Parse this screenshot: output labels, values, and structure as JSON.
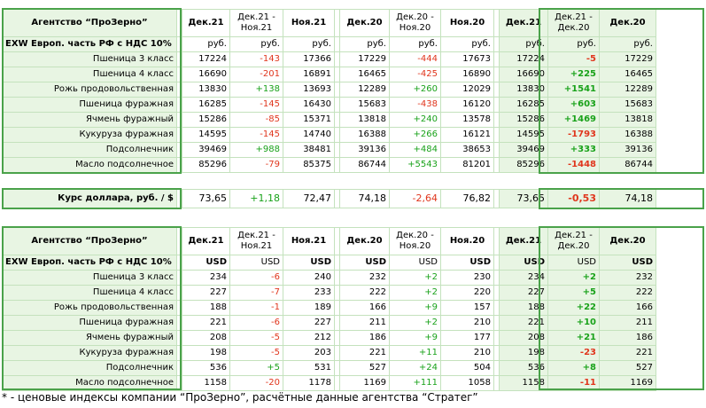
{
  "header1": {
    "agency": "Агентство “ПроЗерно”",
    "basis": "EXW Европ. часть РФ с НДС 10%",
    "cols": [
      "Дек.21",
      "Дек.21 -\nНоя.21",
      "Ноя.21",
      "Дек.20",
      "Дек.20 -\nНоя.20",
      "Ноя.20",
      "Дек.21",
      "Дек.21 -\nДек.20",
      "Дек.20"
    ],
    "units": [
      "руб.",
      "руб.",
      "руб.",
      "руб.",
      "руб.",
      "руб.",
      "руб.",
      "руб.",
      "руб."
    ]
  },
  "rub_rows": [
    {
      "name": "Пшеница 3 класс",
      "v": [
        "17224",
        "-143",
        "17366",
        "17229",
        "-444",
        "17673",
        "17224",
        "-5",
        "17229"
      ]
    },
    {
      "name": "Пшеница 4 класс",
      "v": [
        "16690",
        "-201",
        "16891",
        "16465",
        "-425",
        "16890",
        "16690",
        "+225",
        "16465"
      ]
    },
    {
      "name": "Рожь продовольственная",
      "v": [
        "13830",
        "+138",
        "13693",
        "12289",
        "+260",
        "12029",
        "13830",
        "+1541",
        "12289"
      ]
    },
    {
      "name": "Пшеница фуражная",
      "v": [
        "16285",
        "-145",
        "16430",
        "15683",
        "-438",
        "16120",
        "16285",
        "+603",
        "15683"
      ]
    },
    {
      "name": "Ячмень фуражный",
      "v": [
        "15286",
        "-85",
        "15371",
        "13818",
        "+240",
        "13578",
        "15286",
        "+1469",
        "13818"
      ]
    },
    {
      "name": "Кукуруза фуражная",
      "v": [
        "14595",
        "-145",
        "14740",
        "16388",
        "+266",
        "16121",
        "14595",
        "-1793",
        "16388"
      ]
    },
    {
      "name": "Подсолнечник",
      "v": [
        "39469",
        "+988",
        "38481",
        "39136",
        "+484",
        "38653",
        "39469",
        "+333",
        "39136"
      ]
    },
    {
      "name": "Масло подсолнечное",
      "v": [
        "85296",
        "-79",
        "85375",
        "86744",
        "+5543",
        "81201",
        "85296",
        "-1448",
        "86744"
      ]
    }
  ],
  "dollar_row": {
    "name": "Курс доллара, руб. / $",
    "v": [
      "73,65",
      "+1,18",
      "72,47",
      "74,18",
      "-2,64",
      "76,82",
      "73,65",
      "-0,53",
      "74,18"
    ]
  },
  "header2": {
    "agency": "Агентство “ПроЗерно”",
    "basis": "EXW Европ. часть РФ с НДС 10%",
    "cols": [
      "Дек.21",
      "Дек.21 -\nНоя.21",
      "Ноя.21",
      "Дек.20",
      "Дек.20 -\nНоя.20",
      "Ноя.20",
      "Дек.21",
      "Дек.21 -\nДек.20",
      "Дек.20"
    ],
    "units": [
      "USD",
      "USD",
      "USD",
      "USD",
      "USD",
      "USD",
      "USD",
      "USD",
      "USD"
    ]
  },
  "usd_rows": [
    {
      "name": "Пшеница 3 класс",
      "v": [
        "234",
        "-6",
        "240",
        "232",
        "+2",
        "230",
        "234",
        "+2",
        "232"
      ]
    },
    {
      "name": "Пшеница 4 класс",
      "v": [
        "227",
        "-7",
        "233",
        "222",
        "+2",
        "220",
        "227",
        "+5",
        "222"
      ]
    },
    {
      "name": "Рожь продовольственная",
      "v": [
        "188",
        "-1",
        "189",
        "166",
        "+9",
        "157",
        "188",
        "+22",
        "166"
      ]
    },
    {
      "name": "Пшеница фуражная",
      "v": [
        "221",
        "-6",
        "227",
        "211",
        "+2",
        "210",
        "221",
        "+10",
        "211"
      ]
    },
    {
      "name": "Ячмень фуражный",
      "v": [
        "208",
        "-5",
        "212",
        "186",
        "+9",
        "177",
        "208",
        "+21",
        "186"
      ]
    },
    {
      "name": "Кукуруза фуражная",
      "v": [
        "198",
        "-5",
        "203",
        "221",
        "+11",
        "210",
        "198",
        "-23",
        "221"
      ]
    },
    {
      "name": "Подсолнечник",
      "v": [
        "536",
        "+5",
        "531",
        "527",
        "+24",
        "504",
        "536",
        "+8",
        "527"
      ]
    },
    {
      "name": "Масло подсолнечное",
      "v": [
        "1158",
        "-20",
        "1178",
        "1169",
        "+111",
        "1058",
        "1158",
        "-11",
        "1169"
      ]
    }
  ],
  "footnote": "* -  ценовые индексы компании “ПроЗерно”, расчётные данные агентства “Стратег”",
  "colors": {
    "negative": "#e0361d",
    "positive": "#19a21a",
    "frame": "#4aa24a",
    "highlight": "#e8f5e3",
    "border": "#c4e2bd"
  }
}
